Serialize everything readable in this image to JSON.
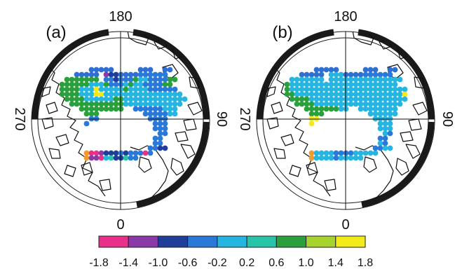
{
  "panels": [
    {
      "label": "(a)",
      "lon_labels": {
        "top": "180",
        "left": "270",
        "right": "90",
        "bottom": "0"
      },
      "grid": [
        "...........RRRRR.....RRR..RR.......",
        "........RRRRR.MNNRRRRBBBBBB........",
        "......GGGGGGG.BBNBBBGLLBBBBGG......",
        ".....GGGGGGLLLGBBBLGLLBBBBGG.......",
        ".....GGGGLLLYLLLLLGLLLLBBBBBB......",
        ".....GGGGLLLYYLLLLLLLLLLLLLLLL.....",
        "......GGGGLLLLLLGGLLLLLLLLLLLLL....",
        ".......GGGGGGGGGGGLLLLLLLLLLLL.....",
        ".........GGGGGGGGG..BBBBBBLLL......",
        "..........GGG.........BBBBBLL......",
        "...........BB..........BBBB........",
        "..........B.............BBB........",
        "........................BBB........",
        ".........................BB........",
        "........................BB.........",
        "........................BB.........",
        ".......................BBNN........",
        "..........OPPMNNNBNBBBPB...........",
        "..........OMMPLKNNKBB.............."
      ]
    },
    {
      "label": "(b)",
      "lon_labels": {
        "top": "180",
        "left": "270",
        "right": "90",
        "bottom": "0"
      },
      "grid": [
        "...........RRRRR.....RRR..RR.......",
        "........RRRRR.LLLRRRRBBBBBB........",
        "......LLLLLLL.LLLLLLLLLLLLLLL......",
        ".....GLLLLLLLLLLLLLLLLLLLLLL.......",
        ".....GLLLLLLLLLLLLLLLLLLLLLLLL.....",
        ".....GGLLLLLLLLLLLLLLLLLLLLLLY.....",
        "......GGGGLLLLLLLLLLLLLLLLLLLL.....",
        ".......GGGGLLLLLLLLLLLLLLLLLL......",
        ".........GGGGGGGLL..LLLLLLLL.......",
        "..........GGG.........LLLLLL.......",
        "..........YY...........LLLL........",
        "..........Y.............LLL........",
        "........................LLL........",
        ".........................LB........",
        "........................BB.........",
        "........................LB.........",
        ".......................BBLL........",
        "..........OLLLLBBBBLLLLL...........",
        "..........OLLLLBLLLLL.............."
      ]
    }
  ],
  "colorbar": {
    "ticks": [
      "-1.8",
      "-1.4",
      "-1.0",
      "-0.6",
      "-0.2",
      "0.2",
      "0.6",
      "1.0",
      "1.4",
      "1.8"
    ],
    "colors": [
      "#e8308a",
      "#8a3aa6",
      "#1f3e9a",
      "#2a78d8",
      "#26b4e0",
      "#28c4a8",
      "#2aa03c",
      "#a6d32e",
      "#f3ea1a",
      "#f59a2a"
    ]
  },
  "colors": {
    "P": "#e8308a",
    "M": "#8a3aa6",
    "N": "#1f3e9a",
    "B": "#2a78d8",
    "L": "#26b4e0",
    "K": "#28c4a8",
    "G": "#2aa03c",
    "Y": "#f3ea1a",
    "O": "#f59a2a",
    "R": "#2f6fd2",
    "ring": "#1a1a1a",
    "coast": "#111111"
  }
}
